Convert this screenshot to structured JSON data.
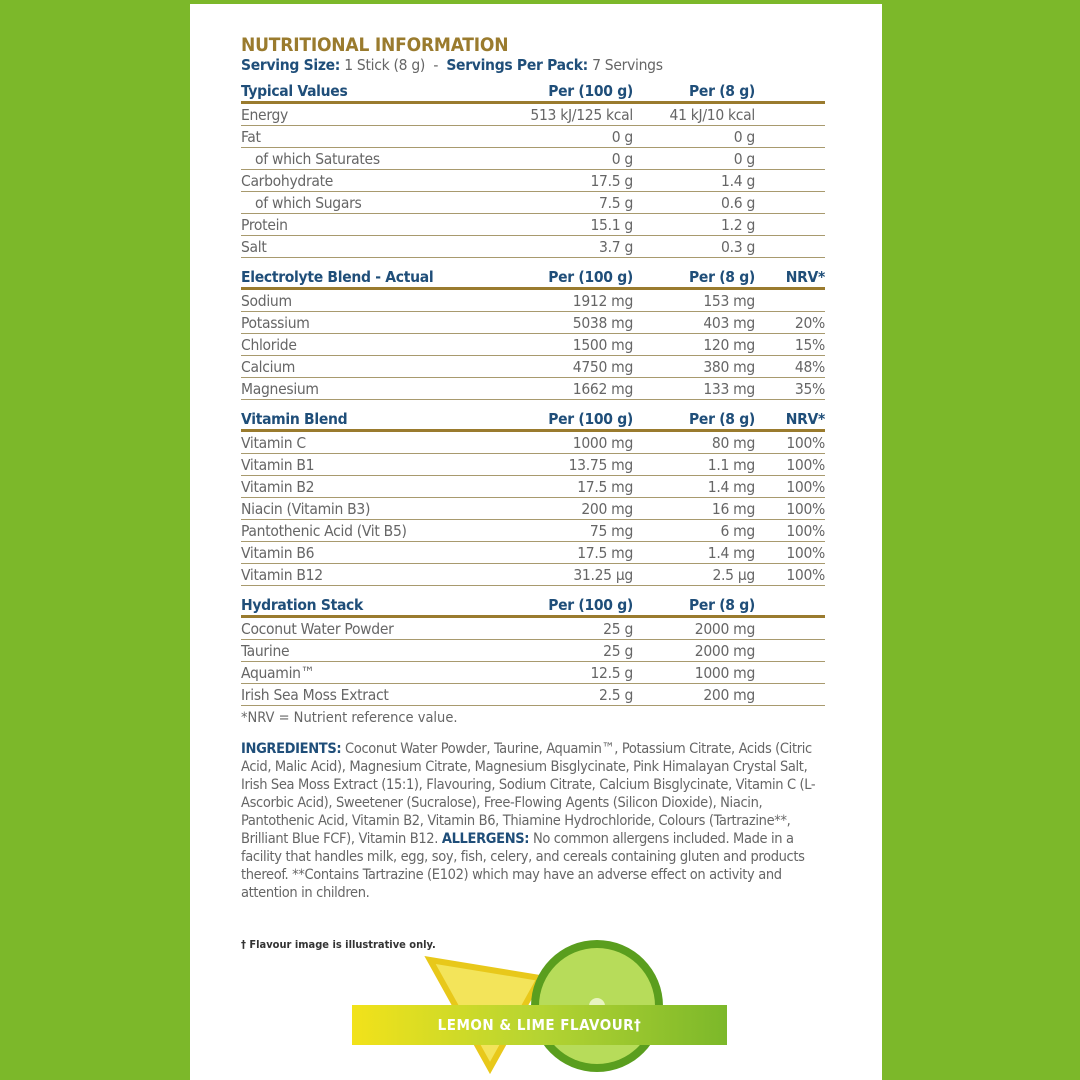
{
  "title": "NUTRITIONAL INFORMATION",
  "serving": {
    "size_label": "Serving Size:",
    "size_value": "1 Stick (8 g)",
    "sep": "-",
    "per_pack_label": "Servings Per Pack:",
    "per_pack_value": "7 Servings"
  },
  "sections": [
    {
      "header": [
        "Typical Values",
        "Per (100 g)",
        "Per (8 g)",
        ""
      ],
      "rows": [
        [
          "Energy",
          "513 kJ/125 kcal",
          "41 kJ/10 kcal",
          ""
        ],
        [
          "Fat",
          "0 g",
          "0 g",
          ""
        ],
        [
          "of which Saturates",
          "0 g",
          "0 g",
          ""
        ],
        [
          "Carbohydrate",
          "17.5 g",
          "1.4 g",
          ""
        ],
        [
          "of which Sugars",
          "7.5 g",
          "0.6 g",
          ""
        ],
        [
          "Protein",
          "15.1 g",
          "1.2 g",
          ""
        ],
        [
          "Salt",
          "3.7 g",
          "0.3 g",
          ""
        ]
      ]
    },
    {
      "header": [
        "Electrolyte Blend - Actual",
        "Per (100 g)",
        "Per (8 g)",
        "NRV*"
      ],
      "rows": [
        [
          "Sodium",
          "1912 mg",
          "153 mg",
          ""
        ],
        [
          "Potassium",
          "5038 mg",
          "403 mg",
          "20%"
        ],
        [
          "Chloride",
          "1500 mg",
          "120 mg",
          "15%"
        ],
        [
          "Calcium",
          "4750 mg",
          "380 mg",
          "48%"
        ],
        [
          "Magnesium",
          "1662 mg",
          "133 mg",
          "35%"
        ]
      ]
    },
    {
      "header": [
        "Vitamin Blend",
        "Per (100 g)",
        "Per (8 g)",
        "NRV*"
      ],
      "rows": [
        [
          "Vitamin C",
          "1000 mg",
          "80 mg",
          "100%"
        ],
        [
          "Vitamin B1",
          "13.75 mg",
          "1.1 mg",
          "100%"
        ],
        [
          "Vitamin B2",
          "17.5 mg",
          "1.4 mg",
          "100%"
        ],
        [
          "Niacin (Vitamin B3)",
          "200 mg",
          "16 mg",
          "100%"
        ],
        [
          "Pantothenic Acid (Vit B5)",
          "75 mg",
          "6 mg",
          "100%"
        ],
        [
          "Vitamin B6",
          "17.5 mg",
          "1.4 mg",
          "100%"
        ],
        [
          "Vitamin B12",
          "31.25 µg",
          "2.5 µg",
          "100%"
        ]
      ]
    },
    {
      "header": [
        "Hydration Stack",
        "Per (100 g)",
        "Per (8 g)",
        ""
      ],
      "rows": [
        [
          "Coconut Water Powder",
          "25 g",
          "2000 mg",
          ""
        ],
        [
          "Taurine",
          "25 g",
          "2000 mg",
          ""
        ],
        [
          "Aquamin™",
          "12.5 g",
          "1000 mg",
          ""
        ],
        [
          "Irish Sea Moss Extract",
          "2.5 g",
          "200 mg",
          ""
        ]
      ]
    }
  ],
  "footnote": "*NRV = Nutrient reference value.",
  "ingredients": {
    "label": "INGREDIENTS:",
    "text": " Coconut Water Powder, Taurine, Aquamin™, Potassium Citrate, Acids (Citric Acid, Malic Acid), Magnesium Citrate, Magnesium Bisglycinate, Pink Himalayan Crystal Salt, Irish Sea Moss Extract (15:1), Flavouring, Sodium Citrate, Calcium Bisglycinate, Vitamin C (L-Ascorbic Acid), Sweetener (Sucralose), Free-Flowing Agents (Silicon Dioxide), Niacin, Pantothenic Acid, Vitamin B2, Vitamin B6, Thiamine Hydrochloride, Colours (Tartrazine**, Brilliant Blue FCF), Vitamin B12. ",
    "allergens_label": "ALLERGENS:",
    "allergens_text": " No common allergens included. Made in a facility that handles milk, egg, soy, fish, celery, and cereals containing gluten and products thereof. **Contains Tartrazine (E102) which may have an adverse effect on activity and attention in children."
  },
  "flavour_note": "† Flavour image is illustrative only.",
  "flavour_banner": "LEMON & LIME FLAVOUR†",
  "colors": {
    "background": "#7cb82a",
    "title": "#9a7b2e",
    "heading": "#1f4e79"
  }
}
